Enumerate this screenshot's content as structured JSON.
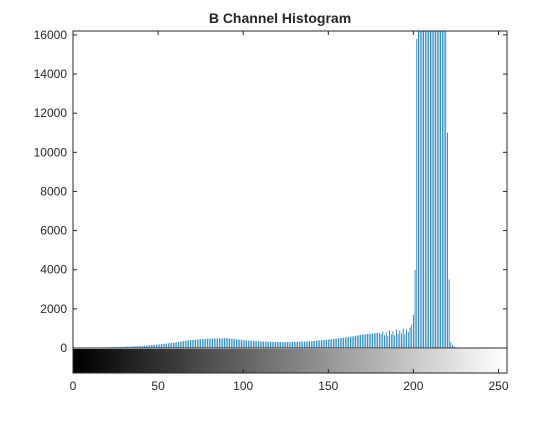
{
  "chart_data": {
    "type": "bar",
    "title": "B Channel Histogram",
    "xlabel": "",
    "ylabel": "",
    "xlim": [
      0,
      255
    ],
    "ylim": [
      0,
      16200
    ],
    "xticks": [
      0,
      50,
      100,
      150,
      200,
      250
    ],
    "yticks": [
      0,
      2000,
      4000,
      6000,
      8000,
      10000,
      12000,
      14000,
      16000
    ],
    "grid": false,
    "bar_color": "#0072BD",
    "x_start": 0,
    "x_step": 1,
    "values": [
      0,
      0,
      0,
      0,
      0,
      0,
      0,
      0,
      0,
      0,
      20,
      22,
      24,
      26,
      28,
      30,
      32,
      34,
      36,
      38,
      40,
      42,
      44,
      46,
      48,
      50,
      52,
      54,
      56,
      58,
      60,
      64,
      68,
      72,
      76,
      80,
      84,
      88,
      92,
      96,
      100,
      108,
      116,
      124,
      132,
      140,
      148,
      156,
      164,
      172,
      180,
      190,
      200,
      210,
      220,
      230,
      240,
      250,
      260,
      270,
      280,
      295,
      310,
      325,
      340,
      355,
      370,
      380,
      390,
      400,
      410,
      418,
      426,
      434,
      442,
      450,
      455,
      460,
      465,
      470,
      475,
      478,
      481,
      484,
      487,
      490,
      492,
      494,
      496,
      498,
      500,
      495,
      485,
      475,
      465,
      455,
      445,
      435,
      425,
      415,
      405,
      398,
      391,
      384,
      377,
      370,
      364,
      358,
      352,
      346,
      340,
      336,
      332,
      328,
      324,
      320,
      318,
      316,
      314,
      312,
      310,
      308,
      306,
      304,
      302,
      300,
      302,
      304,
      306,
      308,
      310,
      314,
      318,
      322,
      326,
      330,
      334,
      338,
      342,
      346,
      350,
      358,
      366,
      374,
      382,
      390,
      398,
      406,
      414,
      422,
      430,
      440,
      450,
      460,
      470,
      480,
      490,
      500,
      510,
      520,
      530,
      545,
      560,
      575,
      590,
      605,
      620,
      635,
      650,
      665,
      680,
      690,
      700,
      710,
      720,
      730,
      740,
      750,
      760,
      770,
      780,
      700,
      850,
      650,
      800,
      600,
      900,
      700,
      850,
      650,
      950,
      700,
      900,
      750,
      1000,
      700,
      950,
      800,
      1050,
      1200,
      1700,
      4000,
      15800,
      16200,
      16200,
      16200,
      16200,
      16200,
      16200,
      16200,
      16200,
      16200,
      16200,
      16200,
      16200,
      16200,
      16200,
      16200,
      16200,
      16200,
      11000,
      3500,
      300,
      150,
      80,
      40,
      20,
      10,
      5,
      2,
      0,
      0,
      0,
      0,
      0,
      0,
      0,
      0,
      0,
      0,
      0,
      0,
      0,
      0,
      0,
      0,
      0,
      0,
      0,
      0,
      0,
      0,
      0,
      0,
      0,
      0
    ]
  }
}
